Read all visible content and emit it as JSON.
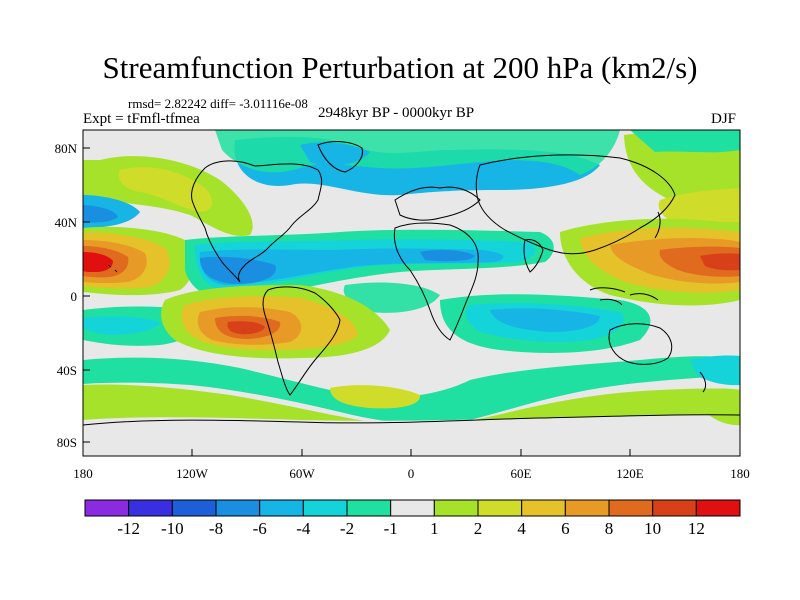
{
  "title": "Streamfunction Perturbation at 200 hPa (km2/s)",
  "stats": "rmsd= 2.82242 diff= -3.01116e-08",
  "experiment": "Expt = tFmfl-tfmea",
  "period": "2948kyr BP - 0000kyr BP",
  "season": "DJF",
  "lat_ticks": [
    "80N",
    "40N",
    "0",
    "40S",
    "80S"
  ],
  "lon_ticks": [
    "180",
    "120W",
    "60W",
    "0",
    "60E",
    "120E",
    "180"
  ],
  "colorbar": {
    "labels": [
      "-12",
      "-10",
      "-8",
      "-6",
      "-4",
      "-2",
      "-1",
      "1",
      "2",
      "4",
      "6",
      "8",
      "10",
      "12"
    ],
    "colors": [
      "#8a2be2",
      "#3a2fe0",
      "#1c5fd8",
      "#1a8ee0",
      "#17b4e6",
      "#14d4d9",
      "#1fe0a0",
      "#e8e8e8",
      "#a6e22a",
      "#cfdc2a",
      "#e6c22a",
      "#e79a25",
      "#e06a1d",
      "#d8401a",
      "#e01010"
    ]
  },
  "colors": {
    "neutral": "#e8e8e8",
    "green": "#a6e22a",
    "yellow": "#e6c22a",
    "orange": "#e06a1d",
    "red": "#e01010",
    "cyan": "#14d4d9",
    "sky": "#17b4e6",
    "blue": "#1c5fd8",
    "mint": "#1fe0a0"
  }
}
